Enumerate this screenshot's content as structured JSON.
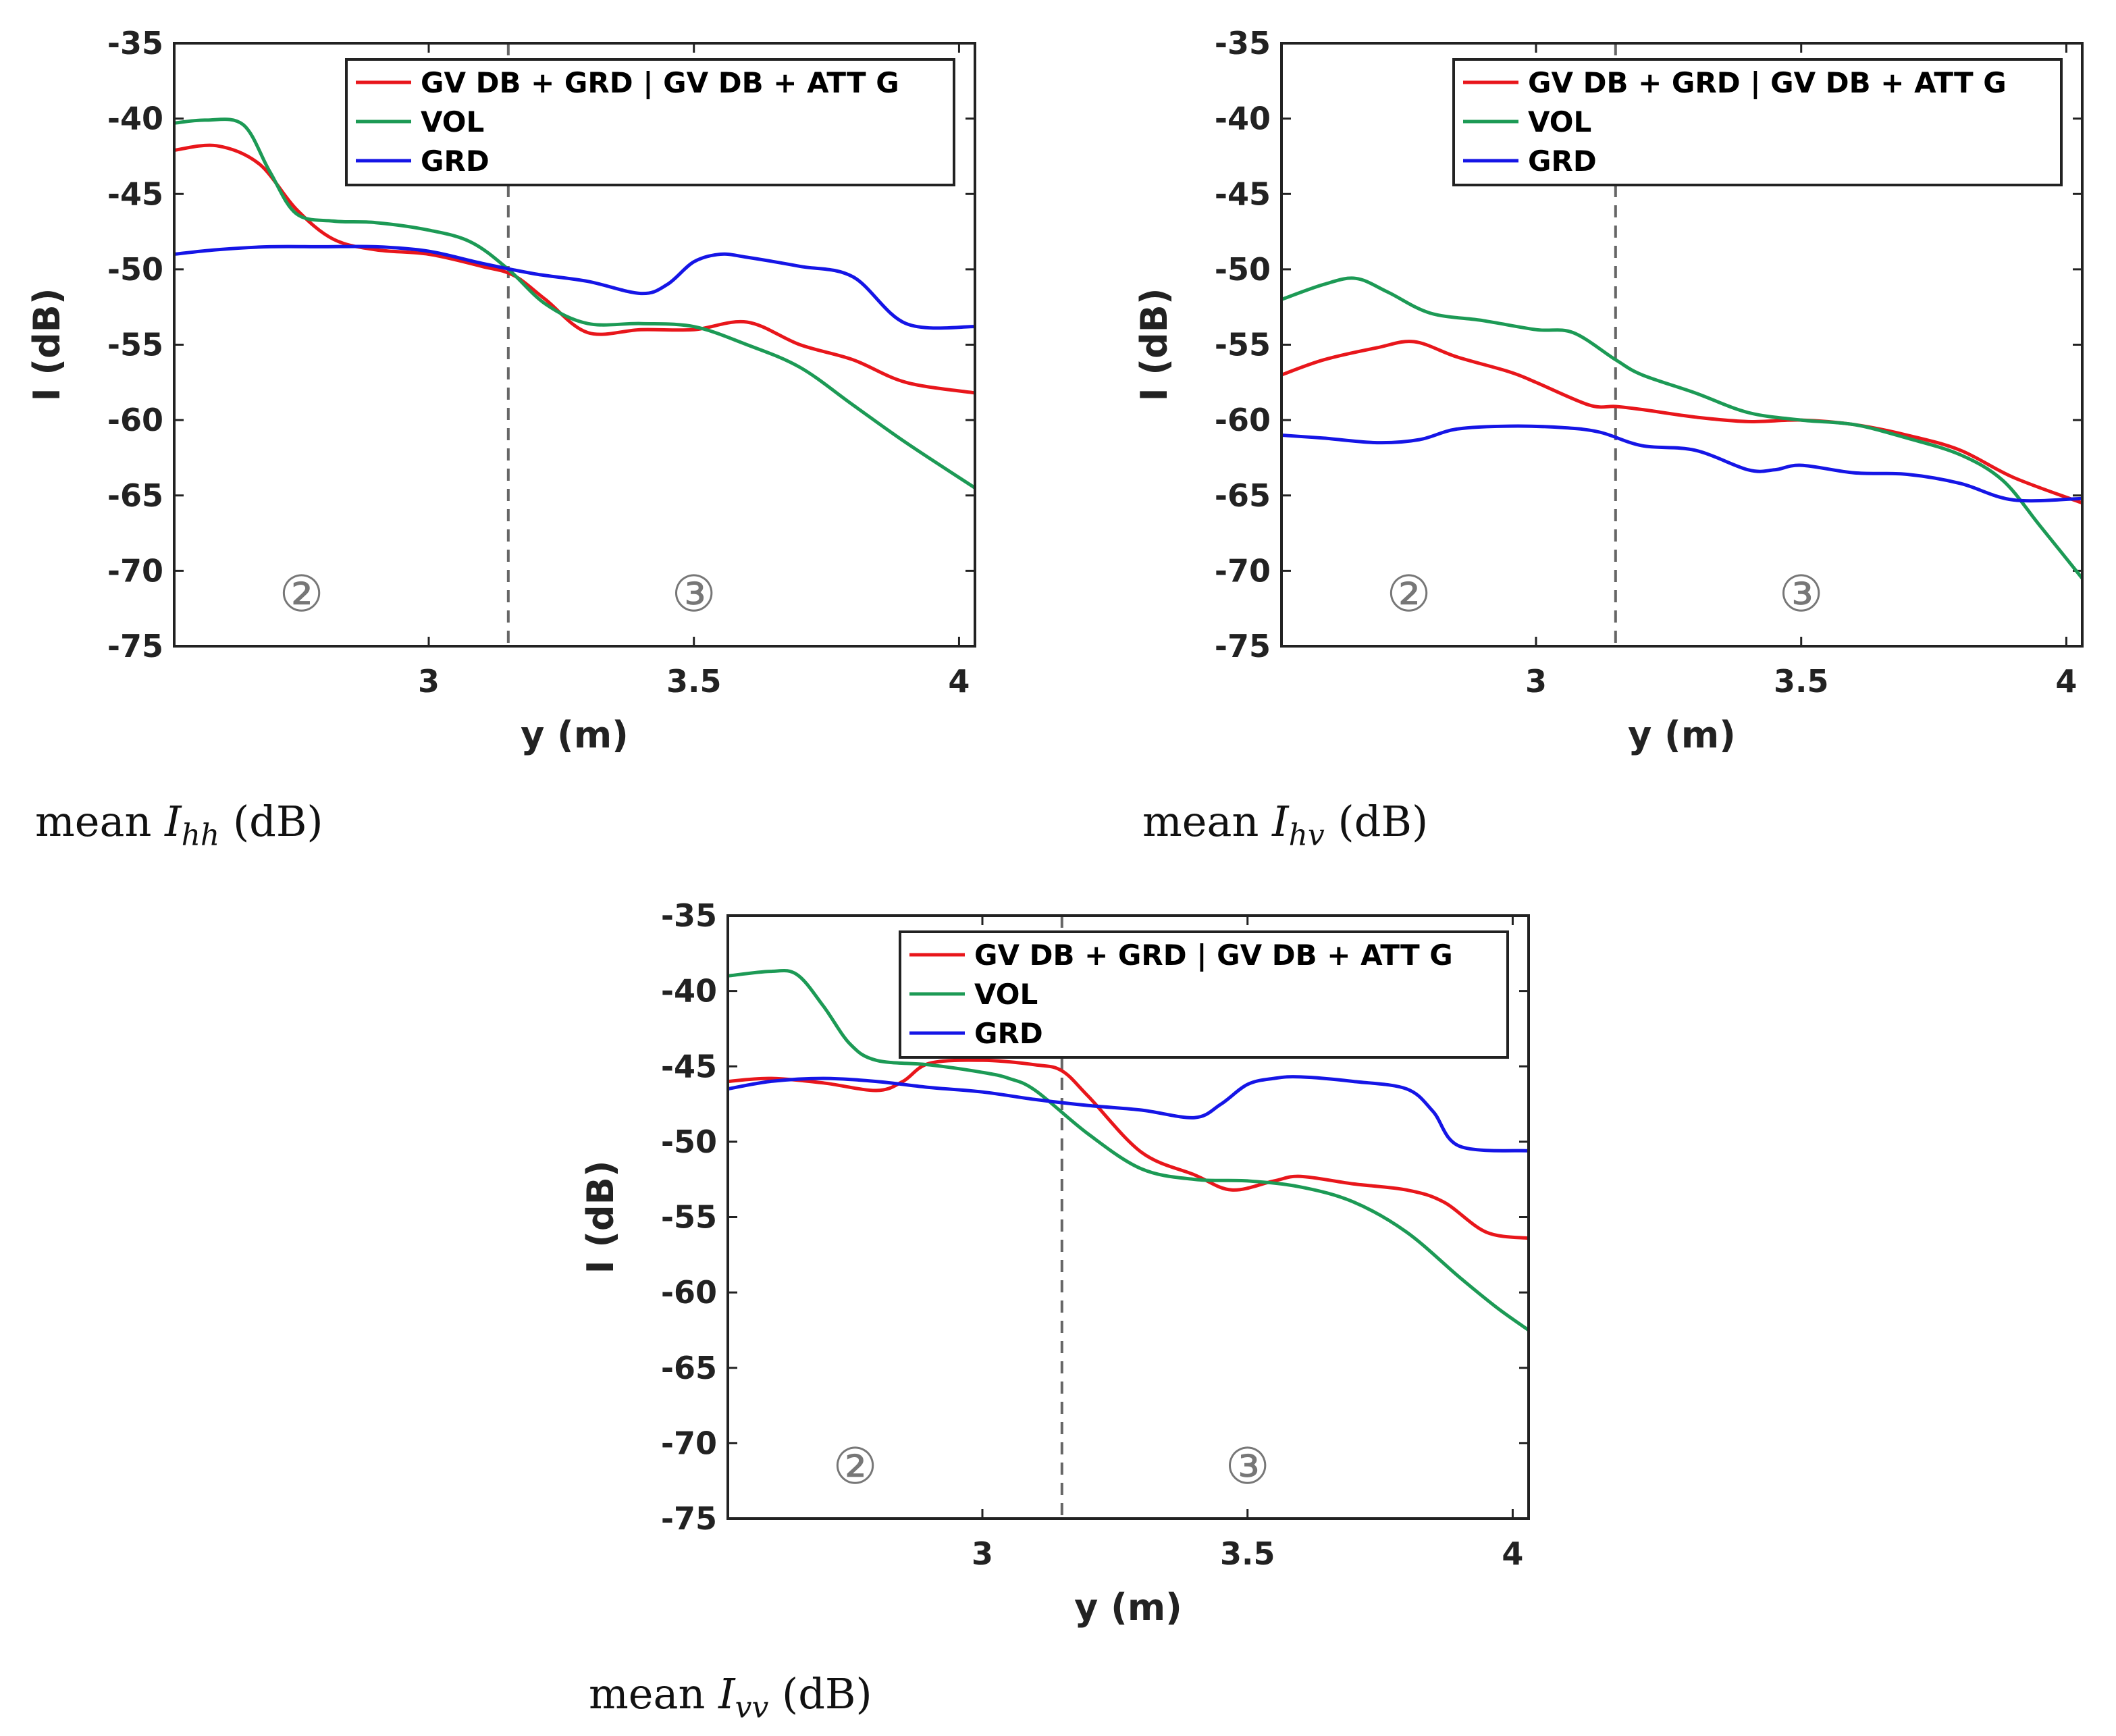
{
  "chart_data": [
    {
      "id": "hh",
      "type": "line",
      "title": "",
      "xlabel": "y (m)",
      "ylabel": "I (dB)",
      "xlim": [
        2.52,
        4.03
      ],
      "ylim": [
        -75,
        -35
      ],
      "xticks": [
        3,
        3.5,
        4
      ],
      "xtick_labels": [
        "3",
        "3.5",
        "4"
      ],
      "yticks": [
        -35,
        -40,
        -45,
        -50,
        -55,
        -60,
        -65,
        -70,
        -75
      ],
      "ytick_labels": [
        "-35",
        "-40",
        "-45",
        "-50",
        "-55",
        "-60",
        "-65",
        "-70",
        "-75"
      ],
      "legend_position": "top-right",
      "divider_x": 3.15,
      "regions": [
        {
          "label": "②",
          "x": 2.76,
          "y": -71.5
        },
        {
          "label": "③",
          "x": 3.5,
          "y": -71.5
        }
      ],
      "series": [
        {
          "name": "GV DB + GRD | GV DB + ATT G",
          "color": "#e8161b",
          "x": [
            2.52,
            2.6,
            2.68,
            2.75,
            2.82,
            2.9,
            3.0,
            3.1,
            3.16,
            3.22,
            3.3,
            3.4,
            3.5,
            3.6,
            3.7,
            3.8,
            3.9,
            4.03
          ],
          "values": [
            -42.1,
            -41.8,
            -43.0,
            -46.0,
            -48.0,
            -48.7,
            -49.0,
            -49.8,
            -50.4,
            -52.0,
            -54.2,
            -54.0,
            -54.0,
            -53.5,
            -55.0,
            -56.0,
            -57.5,
            -58.2
          ]
        },
        {
          "name": "VOL",
          "color": "#1c9a55",
          "x": [
            2.52,
            2.58,
            2.65,
            2.7,
            2.75,
            2.82,
            2.9,
            3.0,
            3.08,
            3.15,
            3.22,
            3.3,
            3.4,
            3.5,
            3.6,
            3.7,
            3.8,
            3.9,
            4.03
          ],
          "values": [
            -40.3,
            -40.1,
            -40.4,
            -43.5,
            -46.3,
            -46.8,
            -46.9,
            -47.4,
            -48.2,
            -50.0,
            -52.3,
            -53.6,
            -53.6,
            -53.8,
            -55.0,
            -56.5,
            -59.0,
            -61.5,
            -64.5
          ]
        },
        {
          "name": "GRD",
          "color": "#1515e6",
          "x": [
            2.52,
            2.6,
            2.7,
            2.8,
            2.9,
            3.0,
            3.1,
            3.2,
            3.3,
            3.4,
            3.45,
            3.5,
            3.55,
            3.6,
            3.7,
            3.8,
            3.9,
            4.03
          ],
          "values": [
            -49.0,
            -48.7,
            -48.5,
            -48.5,
            -48.5,
            -48.8,
            -49.6,
            -50.3,
            -50.8,
            -51.6,
            -51.0,
            -49.5,
            -49.0,
            -49.2,
            -49.8,
            -50.5,
            -53.6,
            -53.8
          ]
        }
      ]
    },
    {
      "id": "hv",
      "type": "line",
      "title": "",
      "xlabel": "y (m)",
      "ylabel": "I (dB)",
      "xlim": [
        2.52,
        4.03
      ],
      "ylim": [
        -75,
        -35
      ],
      "xticks": [
        3,
        3.5,
        4
      ],
      "xtick_labels": [
        "3",
        "3.5",
        "4"
      ],
      "yticks": [
        -35,
        -40,
        -45,
        -50,
        -55,
        -60,
        -65,
        -70,
        -75
      ],
      "ytick_labels": [
        "-35",
        "-40",
        "-45",
        "-50",
        "-55",
        "-60",
        "-65",
        "-70",
        "-75"
      ],
      "legend_position": "top-right",
      "divider_x": 3.15,
      "regions": [
        {
          "label": "②",
          "x": 2.76,
          "y": -71.5
        },
        {
          "label": "③",
          "x": 3.5,
          "y": -71.5
        }
      ],
      "series": [
        {
          "name": "GV DB + GRD | GV DB + ATT G",
          "color": "#e8161b",
          "x": [
            2.52,
            2.6,
            2.7,
            2.77,
            2.85,
            2.95,
            3.0,
            3.1,
            3.15,
            3.2,
            3.3,
            3.4,
            3.5,
            3.6,
            3.7,
            3.8,
            3.9,
            4.03
          ],
          "values": [
            -57.0,
            -56.0,
            -55.2,
            -54.8,
            -55.8,
            -56.8,
            -57.5,
            -59.0,
            -59.1,
            -59.3,
            -59.8,
            -60.1,
            -60.0,
            -60.3,
            -61.0,
            -62.0,
            -63.8,
            -65.5
          ]
        },
        {
          "name": "VOL",
          "color": "#1c9a55",
          "x": [
            2.52,
            2.6,
            2.66,
            2.72,
            2.8,
            2.9,
            3.0,
            3.07,
            3.15,
            3.2,
            3.3,
            3.4,
            3.5,
            3.6,
            3.7,
            3.8,
            3.88,
            3.95,
            4.03
          ],
          "values": [
            -52.0,
            -51.0,
            -50.6,
            -51.5,
            -52.9,
            -53.4,
            -54.0,
            -54.2,
            -56.0,
            -57.0,
            -58.2,
            -59.5,
            -60.0,
            -60.3,
            -61.2,
            -62.3,
            -64.0,
            -67.0,
            -70.5
          ]
        },
        {
          "name": "GRD",
          "color": "#1515e6",
          "x": [
            2.52,
            2.6,
            2.7,
            2.78,
            2.85,
            2.95,
            3.05,
            3.12,
            3.2,
            3.3,
            3.4,
            3.45,
            3.5,
            3.6,
            3.7,
            3.8,
            3.9,
            4.03
          ],
          "values": [
            -61.0,
            -61.2,
            -61.5,
            -61.3,
            -60.6,
            -60.4,
            -60.5,
            -60.8,
            -61.7,
            -62.0,
            -63.3,
            -63.3,
            -63.0,
            -63.5,
            -63.6,
            -64.2,
            -65.3,
            -65.2
          ]
        }
      ]
    },
    {
      "id": "vv",
      "type": "line",
      "title": "",
      "xlabel": "y (m)",
      "ylabel": "I (dB)",
      "xlim": [
        2.52,
        4.03
      ],
      "ylim": [
        -75,
        -35
      ],
      "xticks": [
        3,
        3.5,
        4
      ],
      "xtick_labels": [
        "3",
        "3.5",
        "4"
      ],
      "yticks": [
        -35,
        -40,
        -45,
        -50,
        -55,
        -60,
        -65,
        -70,
        -75
      ],
      "ytick_labels": [
        "-35",
        "-40",
        "-45",
        "-50",
        "-55",
        "-60",
        "-65",
        "-70",
        "-75"
      ],
      "legend_position": "top-right",
      "divider_x": 3.15,
      "regions": [
        {
          "label": "②",
          "x": 2.76,
          "y": -71.5
        },
        {
          "label": "③",
          "x": 3.5,
          "y": -71.5
        }
      ],
      "series": [
        {
          "name": "GV DB + GRD | GV DB + ATT G",
          "color": "#e8161b",
          "x": [
            2.52,
            2.6,
            2.7,
            2.8,
            2.85,
            2.9,
            3.0,
            3.1,
            3.15,
            3.2,
            3.3,
            3.4,
            3.47,
            3.55,
            3.6,
            3.7,
            3.8,
            3.87,
            3.95,
            4.03
          ],
          "values": [
            -46.0,
            -45.8,
            -46.1,
            -46.6,
            -46.0,
            -44.8,
            -44.6,
            -44.9,
            -45.3,
            -47.0,
            -50.7,
            -52.2,
            -53.2,
            -52.6,
            -52.3,
            -52.8,
            -53.2,
            -54.0,
            -56.0,
            -56.4
          ]
        },
        {
          "name": "VOL",
          "color": "#1c9a55",
          "x": [
            2.52,
            2.6,
            2.65,
            2.7,
            2.75,
            2.8,
            2.9,
            3.0,
            3.05,
            3.1,
            3.2,
            3.3,
            3.4,
            3.5,
            3.6,
            3.7,
            3.8,
            3.9,
            3.97,
            4.03
          ],
          "values": [
            -39.0,
            -38.7,
            -38.9,
            -41.0,
            -43.5,
            -44.6,
            -44.9,
            -45.4,
            -45.8,
            -46.6,
            -49.5,
            -51.8,
            -52.5,
            -52.6,
            -53.0,
            -54.0,
            -56.0,
            -59.0,
            -61.0,
            -62.5
          ]
        },
        {
          "name": "GRD",
          "color": "#1515e6",
          "x": [
            2.52,
            2.6,
            2.7,
            2.8,
            2.9,
            3.0,
            3.1,
            3.2,
            3.3,
            3.4,
            3.45,
            3.5,
            3.55,
            3.6,
            3.7,
            3.8,
            3.85,
            3.9,
            4.03
          ],
          "values": [
            -46.5,
            -46.0,
            -45.8,
            -46.0,
            -46.4,
            -46.7,
            -47.2,
            -47.6,
            -47.9,
            -48.4,
            -47.5,
            -46.2,
            -45.8,
            -45.7,
            -46.0,
            -46.5,
            -48.0,
            -50.3,
            -50.6
          ]
        }
      ]
    }
  ],
  "captions": {
    "hh": {
      "prefix": "mean ",
      "var": "I",
      "sub": "hh",
      "suffix": " (dB)"
    },
    "hv": {
      "prefix": "mean ",
      "var": "I",
      "sub": "hv",
      "suffix": " (dB)"
    },
    "vv": {
      "prefix": "mean ",
      "var": "I",
      "sub": "vv",
      "suffix": " (dB)"
    }
  }
}
